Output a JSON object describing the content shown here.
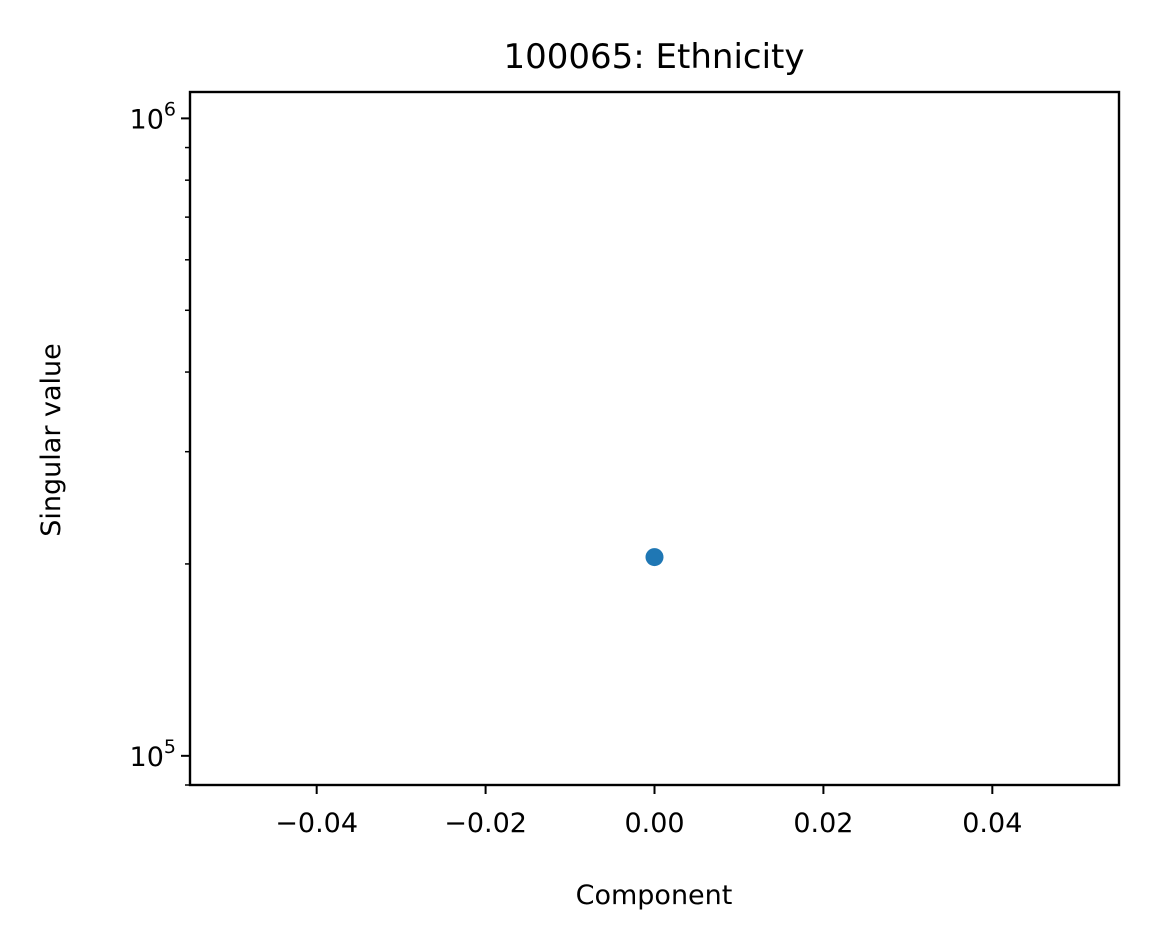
{
  "chart_data": {
    "type": "scatter",
    "title": "100065: Ethnicity",
    "xlabel": "Component",
    "ylabel": "Singular value",
    "x": [
      0.0
    ],
    "y": [
      205000
    ],
    "xlim": [
      -0.055,
      0.055
    ],
    "ylim": [
      90000,
      1100000
    ],
    "yscale": "log",
    "grid": false,
    "legend": "none",
    "marker_color": "#1f77b4",
    "x_ticks": [
      -0.04,
      -0.02,
      0.0,
      0.02,
      0.04
    ],
    "x_tick_labels": [
      "−0.04",
      "−0.02",
      "0.00",
      "0.02",
      "0.04"
    ],
    "y_major_ticks": [
      100000,
      1000000
    ],
    "y_tick_labels": [
      {
        "base": "10",
        "exponent": "5"
      },
      {
        "base": "10",
        "exponent": "6"
      }
    ],
    "y_minor_ticks": [
      90000,
      200000,
      300000,
      400000,
      500000,
      600000,
      700000,
      800000,
      900000
    ]
  }
}
